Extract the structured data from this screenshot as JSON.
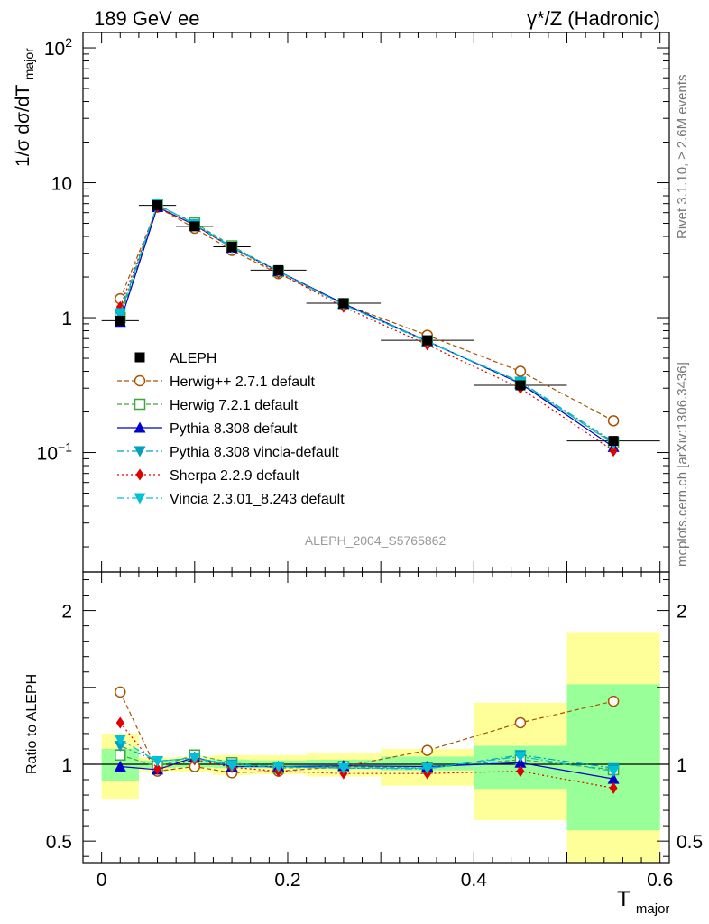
{
  "header": {
    "left": "189 GeV ee",
    "right": "γ*/Z (Hadronic)"
  },
  "side": {
    "rivet": "Rivet 3.1.10, ≥ 2.6M events",
    "mcplots": "mcplots.cern.ch [arXiv:1306.3436]"
  },
  "analysis_label": "ALEPH_2004_S5765862",
  "ylabel_main": "1/σ  dσ/dT",
  "ylabel_main_sub": "major",
  "ylabel_ratio": "Ratio to ALEPH",
  "xlabel": "T",
  "xlabel_sub": "major",
  "colors": {
    "data": "#000000",
    "herwigpp": "#a85300",
    "herwig7": "#3fa63f",
    "pythia": "#0000cc",
    "pythia_vincia": "#00a0c0",
    "sherpa": "#e00000",
    "vincia": "#00c0d8",
    "band_inner": "#99ff99",
    "band_outer": "#ffff99"
  },
  "chart_data": [
    {
      "type": "line",
      "panel": "main",
      "ylog": true,
      "xlim": [
        -0.02,
        0.61
      ],
      "ylim": [
        0.013,
        130
      ],
      "yticks": [
        {
          "v": 0.1,
          "base": "10",
          "exp": "−1"
        },
        {
          "v": 1,
          "base": "1",
          "exp": ""
        },
        {
          "v": 10,
          "base": "10",
          "exp": ""
        },
        {
          "v": 100,
          "base": "10",
          "exp": "2"
        }
      ],
      "x": [
        0.02,
        0.06,
        0.1,
        0.14,
        0.19,
        0.26,
        0.35,
        0.45,
        0.55
      ],
      "data_series": {
        "name": "ALEPH",
        "values": [
          0.95,
          6.8,
          4.75,
          3.35,
          2.25,
          1.28,
          0.68,
          0.315,
          0.122
        ]
      },
      "series": [
        {
          "name": "Herwig++ 2.7.1 default",
          "color_key": "herwigpp",
          "marker": "open-circle",
          "dash": "5,3",
          "values": [
            1.38,
            6.6,
            4.6,
            3.15,
            2.12,
            1.26,
            0.74,
            0.4,
            0.172
          ]
        },
        {
          "name": "Herwig 7.2.1 default",
          "color_key": "herwig7",
          "marker": "open-square",
          "dash": "5,3",
          "values": [
            1.0,
            6.75,
            5.05,
            3.4,
            2.2,
            1.27,
            0.67,
            0.325,
            0.118
          ]
        },
        {
          "name": "Pythia 8.308 default",
          "color_key": "pythia",
          "marker": "triangle-up",
          "dash": "",
          "values": [
            0.93,
            6.6,
            4.85,
            3.3,
            2.21,
            1.27,
            0.67,
            0.325,
            0.11
          ]
        },
        {
          "name": "Pythia 8.308 vincia-default",
          "color_key": "pythia_vincia",
          "marker": "triangle-down",
          "dash": "8,3,2,3",
          "values": [
            1.05,
            6.9,
            4.95,
            3.35,
            2.2,
            1.25,
            0.66,
            0.335,
            0.12
          ]
        },
        {
          "name": "Sherpa 2.2.9 default",
          "color_key": "sherpa",
          "marker": "diamond",
          "dash": "2,3",
          "values": [
            1.2,
            6.6,
            4.85,
            3.3,
            2.15,
            1.2,
            0.63,
            0.3,
            0.103
          ]
        },
        {
          "name": "Vincia 2.3.01_8.243 default",
          "color_key": "vincia",
          "marker": "triangle-down",
          "dash": "8,3,2,3",
          "values": [
            1.08,
            6.9,
            4.9,
            3.3,
            2.2,
            1.25,
            0.67,
            0.33,
            0.116
          ]
        }
      ]
    },
    {
      "type": "line",
      "panel": "ratio",
      "ylabel": "Ratio to ALEPH",
      "xlabel": "T_major",
      "xlim": [
        -0.02,
        0.61
      ],
      "ylim": [
        0.36,
        2.25
      ],
      "yticks": [
        0.5,
        1,
        2
      ],
      "xticks": [
        0,
        0.2,
        0.4,
        0.6
      ],
      "x": [
        0.02,
        0.06,
        0.1,
        0.14,
        0.19,
        0.26,
        0.35,
        0.45,
        0.55
      ],
      "bins": [
        [
          0,
          0.04
        ],
        [
          0.04,
          0.08
        ],
        [
          0.08,
          0.12
        ],
        [
          0.12,
          0.16
        ],
        [
          0.16,
          0.22
        ],
        [
          0.22,
          0.3
        ],
        [
          0.3,
          0.4
        ],
        [
          0.4,
          0.5
        ],
        [
          0.5,
          0.6
        ]
      ],
      "band_inner": [
        [
          0.89,
          1.1
        ],
        [
          0.975,
          1.025
        ],
        [
          0.98,
          1.03
        ],
        [
          0.975,
          1.03
        ],
        [
          0.975,
          1.025
        ],
        [
          0.97,
          1.03
        ],
        [
          0.96,
          1.05
        ],
        [
          0.84,
          1.12
        ],
        [
          0.57,
          1.52
        ]
      ],
      "band_outer": [
        [
          0.77,
          1.2
        ],
        [
          0.955,
          1.045
        ],
        [
          0.95,
          1.05
        ],
        [
          0.93,
          1.06
        ],
        [
          0.935,
          1.06
        ],
        [
          0.92,
          1.07
        ],
        [
          0.86,
          1.1
        ],
        [
          0.635,
          1.4
        ],
        [
          0.33,
          1.86
        ]
      ],
      "series": [
        {
          "name": "Herwig++ 2.7.1 default",
          "color_key": "herwigpp",
          "marker": "open-circle",
          "dash": "5,3",
          "values": [
            1.47,
            0.955,
            0.985,
            0.945,
            0.955,
            0.985,
            1.09,
            1.27,
            1.41
          ]
        },
        {
          "name": "Herwig 7.2.1 default",
          "color_key": "herwig7",
          "marker": "open-square",
          "dash": "5,3",
          "values": [
            1.06,
            0.985,
            1.06,
            1.01,
            0.975,
            0.985,
            0.975,
            1.03,
            0.965
          ]
        },
        {
          "name": "Pythia 8.308 default",
          "color_key": "pythia",
          "marker": "triangle-up",
          "dash": "",
          "values": [
            0.985,
            0.965,
            1.045,
            0.985,
            0.985,
            0.99,
            0.985,
            1.01,
            0.905
          ]
        },
        {
          "name": "Pythia 8.308 vincia-default",
          "color_key": "pythia_vincia",
          "marker": "triangle-down",
          "dash": "8,3,2,3",
          "values": [
            1.12,
            1.02,
            1.04,
            1.0,
            0.985,
            0.975,
            0.97,
            1.06,
            0.975
          ]
        },
        {
          "name": "Sherpa 2.2.9 default",
          "color_key": "sherpa",
          "marker": "diamond",
          "dash": "2,3",
          "values": [
            1.27,
            0.97,
            1.03,
            0.98,
            0.955,
            0.94,
            0.94,
            0.955,
            0.845
          ]
        },
        {
          "name": "Vincia 2.3.01_8.243 default",
          "color_key": "vincia",
          "marker": "triangle-down",
          "dash": "8,3,2,3",
          "values": [
            1.16,
            1.02,
            1.04,
            0.99,
            0.985,
            0.975,
            0.975,
            1.05,
            0.955
          ]
        }
      ]
    }
  ]
}
